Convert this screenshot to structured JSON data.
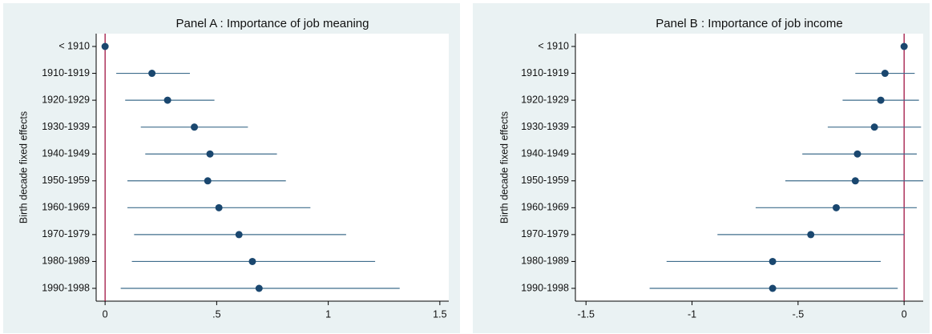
{
  "chart_data": [
    {
      "type": "errorbar",
      "title": "Panel A : Importance of job meaning",
      "y_label": "Birth decade fixed effects",
      "categories": [
        "< 1910",
        "1910-1919",
        "1920-1929",
        "1930-1939",
        "1940-1949",
        "1950-1959",
        "1960-1969",
        "1970-1979",
        "1980-1989",
        "1990-1998"
      ],
      "series": [
        {
          "color": "#1a476f",
          "values": [
            0,
            0.21,
            0.28,
            0.4,
            0.47,
            0.46,
            0.51,
            0.6,
            0.66,
            0.69
          ],
          "lower": [
            null,
            0.05,
            0.09,
            0.16,
            0.18,
            0.1,
            0.1,
            0.13,
            0.12,
            0.07
          ],
          "upper": [
            null,
            0.38,
            0.49,
            0.64,
            0.77,
            0.81,
            0.92,
            1.08,
            1.21,
            1.32
          ]
        }
      ],
      "xlim": [
        -0.04,
        1.54
      ],
      "xticks": [
        0,
        {
          "value": 0.5,
          "label": ".5"
        },
        1,
        1.5
      ],
      "ref_line": {
        "value": 0,
        "color": "#990033"
      },
      "grid": false
    },
    {
      "type": "errorbar",
      "title": "Panel B : Importance of job income",
      "y_label": "Birth decade fixed effects",
      "categories": [
        "< 1910",
        "1910-1919",
        "1920-1929",
        "1930-1939",
        "1940-1949",
        "1950-1959",
        "1960-1969",
        "1970-1979",
        "1980-1989",
        "1990-1998"
      ],
      "series": [
        {
          "color": "#1a476f",
          "values": [
            0,
            -0.09,
            -0.11,
            -0.14,
            -0.22,
            -0.23,
            -0.32,
            -0.44,
            -0.62,
            -0.62
          ],
          "lower": [
            null,
            -0.23,
            -0.29,
            -0.36,
            -0.48,
            -0.56,
            -0.7,
            -0.88,
            -1.12,
            -1.2
          ],
          "upper": [
            null,
            0.05,
            0.07,
            0.08,
            0.06,
            0.09,
            0.06,
            0.0,
            -0.11,
            -0.03
          ]
        }
      ],
      "xlim": [
        -1.55,
        0.09
      ],
      "xticks": [
        -1.5,
        -1,
        {
          "value": -0.5,
          "label": "-.5"
        },
        0
      ],
      "ref_line": {
        "value": 0,
        "color": "#990033"
      },
      "grid": false
    }
  ]
}
